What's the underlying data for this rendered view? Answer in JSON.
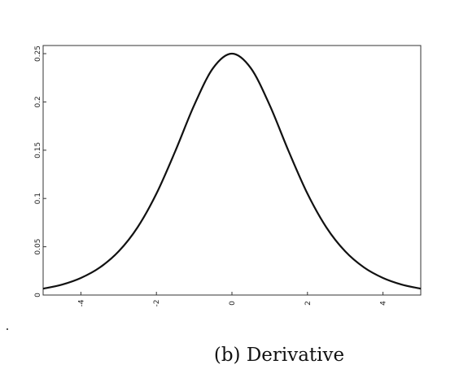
{
  "caption": "(b) Derivative",
  "chart_data": {
    "type": "line",
    "title": "",
    "xlabel": "",
    "ylabel": "",
    "xlim": [
      -5,
      5
    ],
    "ylim": [
      0,
      0.25
    ],
    "grid": false,
    "x_ticks": [
      -4,
      -2,
      0,
      2,
      4
    ],
    "y_ticks": [
      0,
      0.05,
      0.1,
      0.15,
      0.2,
      0.25
    ],
    "x_tick_labels": [
      "-4",
      "-2",
      "0",
      "2",
      "4"
    ],
    "y_tick_labels": [
      "0",
      "0.05",
      "0.1",
      "0.15",
      "0.2",
      "0.25"
    ],
    "series": [
      {
        "x": [
          -5,
          -4.5,
          -4,
          -3.5,
          -3,
          -2.5,
          -2,
          -1.5,
          -1,
          -0.5,
          0,
          0.5,
          1,
          1.5,
          2,
          2.5,
          3,
          3.5,
          4,
          4.5,
          5
        ],
        "y": [
          0.0066,
          0.0108,
          0.0177,
          0.0285,
          0.0452,
          0.0701,
          0.105,
          0.1491,
          0.1966,
          0.235,
          0.25,
          0.235,
          0.1966,
          0.1491,
          0.105,
          0.0701,
          0.0452,
          0.0285,
          0.0177,
          0.0108,
          0.0066
        ]
      }
    ],
    "colors": {
      "line": "#111111",
      "axis": "#333333"
    }
  }
}
